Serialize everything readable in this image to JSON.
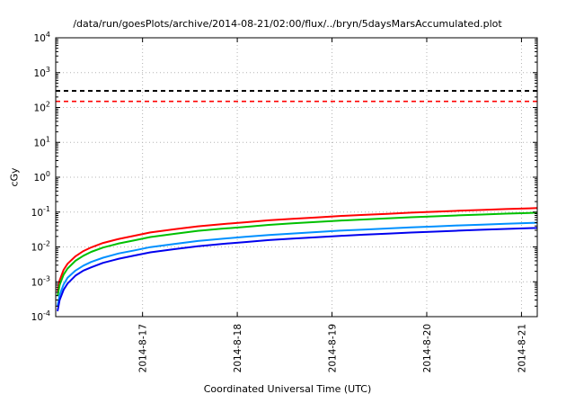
{
  "chart_data": {
    "type": "line",
    "title": "/data/run/goesPlots/archive/2014-08-21/02:00/flux/../bryn/5daysMarsAccumulated.plot",
    "xlabel": "Coordinated Universal Time (UTC)",
    "ylabel": "cGy",
    "y_scale": "log",
    "ylim": [
      0.0001,
      10000
    ],
    "y_tick_exponents": [
      4,
      3,
      2,
      1,
      0,
      -1,
      -2,
      -3,
      -4
    ],
    "x_range_hours": [
      0,
      122
    ],
    "x_ticks": [
      {
        "hours": 22,
        "label": "2014-8-17"
      },
      {
        "hours": 46,
        "label": "2014-8-18"
      },
      {
        "hours": 70,
        "label": "2014-8-19"
      },
      {
        "hours": 94,
        "label": "2014-8-20"
      },
      {
        "hours": 118,
        "label": "2014-8-21"
      }
    ],
    "grid": true,
    "legend": "none",
    "thresholds": [
      {
        "name": "upper-limit-line",
        "value": 300,
        "color": "#000000",
        "style": "dashed"
      },
      {
        "name": "lower-limit-line",
        "value": 150,
        "color": "#ff0000",
        "style": "dashed"
      }
    ],
    "x_hours": [
      0.5,
      1,
      2,
      3,
      5,
      7,
      9,
      12,
      16,
      20,
      24,
      30,
      36,
      42,
      48,
      54,
      60,
      66,
      72,
      78,
      84,
      90,
      96,
      102,
      108,
      114,
      120,
      122
    ],
    "series": [
      {
        "name": "red",
        "color": "#ff0000",
        "values": [
          0.00055,
          0.0011,
          0.0022,
          0.0033,
          0.0054,
          0.0076,
          0.0097,
          0.013,
          0.017,
          0.021,
          0.026,
          0.032,
          0.039,
          0.045,
          0.051,
          0.058,
          0.064,
          0.07,
          0.077,
          0.083,
          0.089,
          0.096,
          0.102,
          0.109,
          0.115,
          0.122,
          0.128,
          0.13
        ]
      },
      {
        "name": "green",
        "color": "#00c000",
        "values": [
          0.00041,
          0.00081,
          0.0016,
          0.0024,
          0.004,
          0.0056,
          0.0072,
          0.0096,
          0.0126,
          0.0155,
          0.0192,
          0.0237,
          0.0289,
          0.0333,
          0.0377,
          0.0429,
          0.0474,
          0.0518,
          0.057,
          0.0614,
          0.0659,
          0.071,
          0.0755,
          0.0807,
          0.0851,
          0.0903,
          0.0947,
          0.096
        ]
      },
      {
        "name": "light-blue",
        "color": "#0090ff",
        "values": [
          0.00021,
          0.00042,
          0.00084,
          0.0013,
          0.0021,
          0.0029,
          0.0037,
          0.0049,
          0.0065,
          0.008,
          0.0099,
          0.0122,
          0.0148,
          0.0171,
          0.0194,
          0.022,
          0.0243,
          0.0266,
          0.0293,
          0.0315,
          0.0338,
          0.0365,
          0.0388,
          0.0414,
          0.0437,
          0.0464,
          0.0486,
          0.0494
        ]
      },
      {
        "name": "blue",
        "color": "#0000ee",
        "values": [
          0.00015,
          0.0003,
          0.00059,
          0.00089,
          0.0015,
          0.0021,
          0.0026,
          0.0035,
          0.0046,
          0.0057,
          0.007,
          0.0086,
          0.0105,
          0.0122,
          0.0138,
          0.0157,
          0.0173,
          0.0189,
          0.0208,
          0.0224,
          0.024,
          0.0259,
          0.0275,
          0.0294,
          0.0311,
          0.0329,
          0.0346,
          0.0351
        ]
      }
    ]
  }
}
